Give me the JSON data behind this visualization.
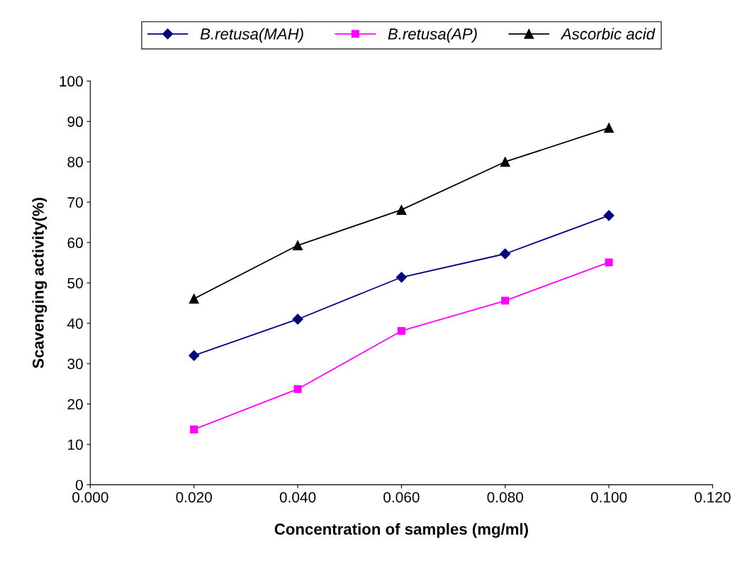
{
  "chart_data": {
    "type": "line",
    "xlabel": "Concentration of samples (mg/ml)",
    "ylabel": "Scavenging activity(%)",
    "x": [
      0.02,
      0.04,
      0.06,
      0.08,
      0.1
    ],
    "series": [
      {
        "name": "B.retusa(MAH)",
        "color": "#000080",
        "marker": "diamond",
        "values": [
          32,
          41,
          51.4,
          57.2,
          66.7
        ]
      },
      {
        "name": "B.retusa(AP)",
        "color": "#ff00ff",
        "marker": "square",
        "values": [
          13.7,
          23.7,
          38.1,
          45.6,
          55.1
        ]
      },
      {
        "name": "Ascorbic acid",
        "color": "#000000",
        "marker": "triangle",
        "values": [
          46.1,
          59.3,
          68.1,
          80,
          88.4
        ]
      }
    ],
    "xlim": [
      0,
      0.12
    ],
    "xticks": [
      {
        "value": 0,
        "label": "0.000"
      },
      {
        "value": 0.02,
        "label": "0.020"
      },
      {
        "value": 0.04,
        "label": "0.040"
      },
      {
        "value": 0.06,
        "label": "0.060"
      },
      {
        "value": 0.08,
        "label": "0.080"
      },
      {
        "value": 0.1,
        "label": "0.100"
      },
      {
        "value": 0.12,
        "label": "0.120"
      }
    ],
    "ylim": [
      0,
      100
    ],
    "yticks": [
      0,
      10,
      20,
      30,
      40,
      50,
      60,
      70,
      80,
      90,
      100
    ],
    "grid": false,
    "legend": "top",
    "line_style": "solid"
  }
}
